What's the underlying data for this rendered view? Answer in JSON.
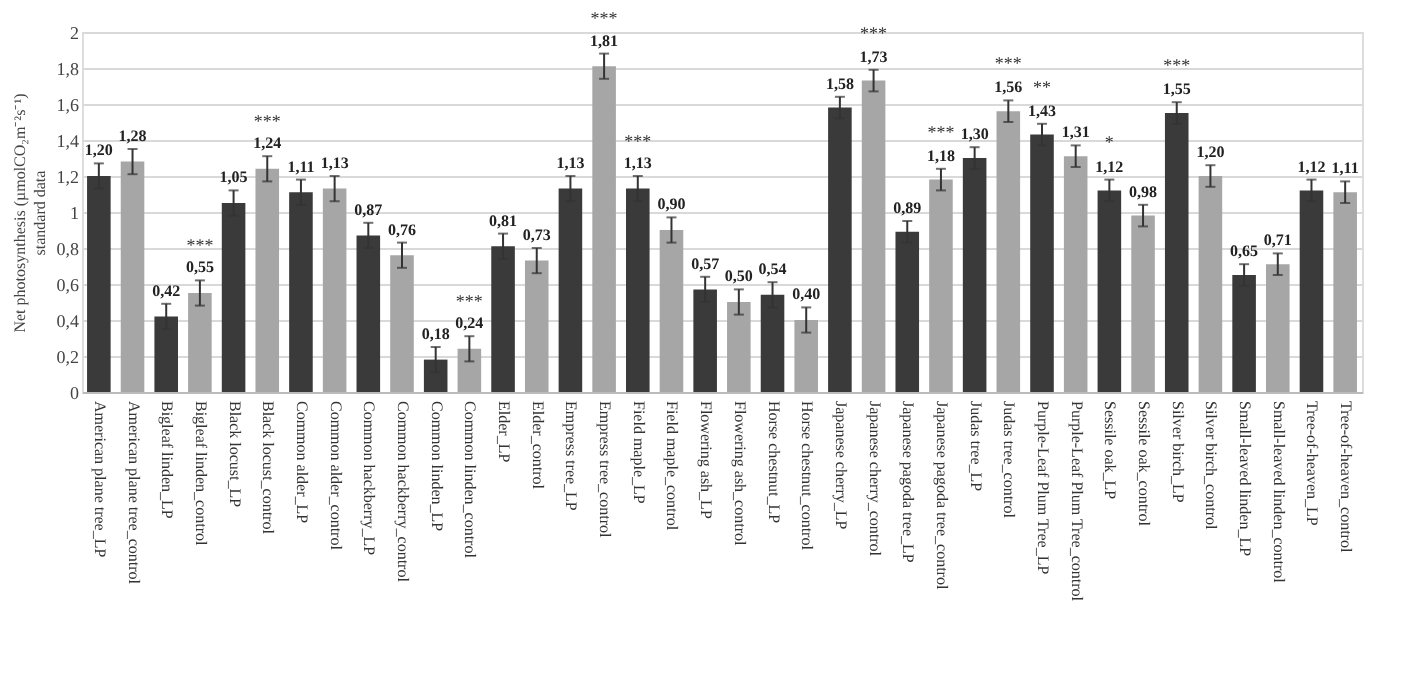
{
  "chart_data": {
    "type": "bar",
    "ylabel": "Net photosynthesis (µmolCO₂m⁻²s⁻¹)\nstandard data",
    "categories": [
      "American plane tree_LP",
      "American plane tree_control",
      "Bigleaf linden_LP",
      "Bigleaf linden_control",
      "Black locust_LP",
      "Black locust_control",
      "Common alder_LP",
      "Common alder_control",
      "Common hackberry_LP",
      "Common hackberry_control",
      "Common linden_LP",
      "Common linden_control",
      "Elder_LP",
      "Elder_control",
      "Empress tree_LP",
      "Empress tree_control",
      "Field maple_LP",
      "Field maple_control",
      "Flowering ash_LP",
      "Flowering ash_control",
      "Horse chestnut_LP",
      "Horse chestnut_control",
      "Japanese cherry_LP",
      "Japanese cherry_control",
      "Japanese pagoda tree_LP",
      "Japanese pagoda tree_control",
      "Judas tree_LP",
      "Judas tree_control",
      "Purple-Leaf Plum Tree_LP",
      "Purple-Leaf Plum Tree_control",
      "Sessile oak_LP",
      "Sessile oak_control",
      "Silver birch_LP",
      "Silver birch_control",
      "Small-leaved linden_LP",
      "Small-leaved linden_control",
      "Tree-of-heaven_LP",
      "Tree-of-heaven_control"
    ],
    "values": [
      1.2,
      1.28,
      0.42,
      0.55,
      1.05,
      1.24,
      1.11,
      1.13,
      0.87,
      0.76,
      0.18,
      0.24,
      0.81,
      0.73,
      1.13,
      1.81,
      1.13,
      0.9,
      0.57,
      0.5,
      0.54,
      0.4,
      1.58,
      1.73,
      0.89,
      1.18,
      1.3,
      1.56,
      1.43,
      1.31,
      1.12,
      0.98,
      1.55,
      1.2,
      0.65,
      0.71,
      1.12,
      1.11
    ],
    "value_labels": [
      "1,20",
      "1,28",
      "0,42",
      "0,55",
      "1,05",
      "1,24",
      "1,11",
      "1,13",
      "0,87",
      "0,76",
      "0,18",
      "0,24",
      "0,81",
      "0,73",
      "1,13",
      "1,81",
      "1,13",
      "0,90",
      "0,57",
      "0,50",
      "0,54",
      "0,40",
      "1,58",
      "1,73",
      "0,89",
      "1,18",
      "1,30",
      "1,56",
      "1,43",
      "1,31",
      "1,12",
      "0,98",
      "1,55",
      "1,20",
      "0,65",
      "0,71",
      "1,12",
      "1,11"
    ],
    "errors": [
      0.07,
      0.07,
      0.07,
      0.07,
      0.07,
      0.07,
      0.07,
      0.07,
      0.07,
      0.07,
      0.07,
      0.07,
      0.07,
      0.07,
      0.07,
      0.07,
      0.07,
      0.07,
      0.07,
      0.07,
      0.07,
      0.07,
      0.06,
      0.06,
      0.06,
      0.06,
      0.06,
      0.06,
      0.06,
      0.06,
      0.06,
      0.06,
      0.06,
      0.06,
      0.06,
      0.06,
      0.06,
      0.06
    ],
    "colors": [
      "#3a3a3a",
      "#a6a6a6",
      "#3a3a3a",
      "#a6a6a6",
      "#3a3a3a",
      "#a6a6a6",
      "#3a3a3a",
      "#a6a6a6",
      "#3a3a3a",
      "#a6a6a6",
      "#3a3a3a",
      "#a6a6a6",
      "#3a3a3a",
      "#a6a6a6",
      "#3a3a3a",
      "#a6a6a6",
      "#3a3a3a",
      "#a6a6a6",
      "#3a3a3a",
      "#a6a6a6",
      "#3a3a3a",
      "#a6a6a6",
      "#3a3a3a",
      "#a6a6a6",
      "#3a3a3a",
      "#a6a6a6",
      "#3a3a3a",
      "#a6a6a6",
      "#3a3a3a",
      "#a6a6a6",
      "#3a3a3a",
      "#a6a6a6",
      "#3a3a3a",
      "#a6a6a6",
      "#3a3a3a",
      "#a6a6a6",
      "#3a3a3a",
      "#a6a6a6"
    ],
    "annotations": [
      {
        "text": "***",
        "x": "Bigleaf linden_control",
        "y": 0.55
      },
      {
        "text": "***",
        "x": "Black locust_control",
        "y": 1.24
      },
      {
        "text": "***",
        "x": "Common linden_control",
        "y": 0.24
      },
      {
        "text": "***",
        "x": "Empress tree_control",
        "y": 1.81
      },
      {
        "text": "***",
        "x": "Field maple_LP",
        "y": 1.13
      },
      {
        "text": "***",
        "x": "Japanese cherry_control",
        "y": 1.73
      },
      {
        "text": "***",
        "x": "Japanese pagoda tree_control",
        "y": 1.18
      },
      {
        "text": "***",
        "x": "Judas tree_control",
        "y": 1.56
      },
      {
        "text": "**",
        "x": "Purple-Leaf Plum Tree_LP",
        "y": 1.43
      },
      {
        "text": "*",
        "x": "Sessile oak_LP",
        "y": 1.12
      },
      {
        "text": "***",
        "x": "Silver birch_LP",
        "y": 1.55
      }
    ],
    "ylim": [
      0,
      2
    ],
    "yticks": [
      0,
      {
        "value": 0.2,
        "label": "0,2"
      },
      {
        "value": 0.4,
        "label": "0,4"
      },
      {
        "value": 0.6,
        "label": "0,6"
      },
      {
        "value": 0.8,
        "label": "0,8"
      },
      1,
      {
        "value": 1.2,
        "label": "1,2"
      },
      {
        "value": 1.4,
        "label": "1,4"
      },
      {
        "value": 1.6,
        "label": "1,6"
      },
      {
        "value": 1.8,
        "label": "1,8"
      },
      2
    ],
    "grid": "y"
  }
}
